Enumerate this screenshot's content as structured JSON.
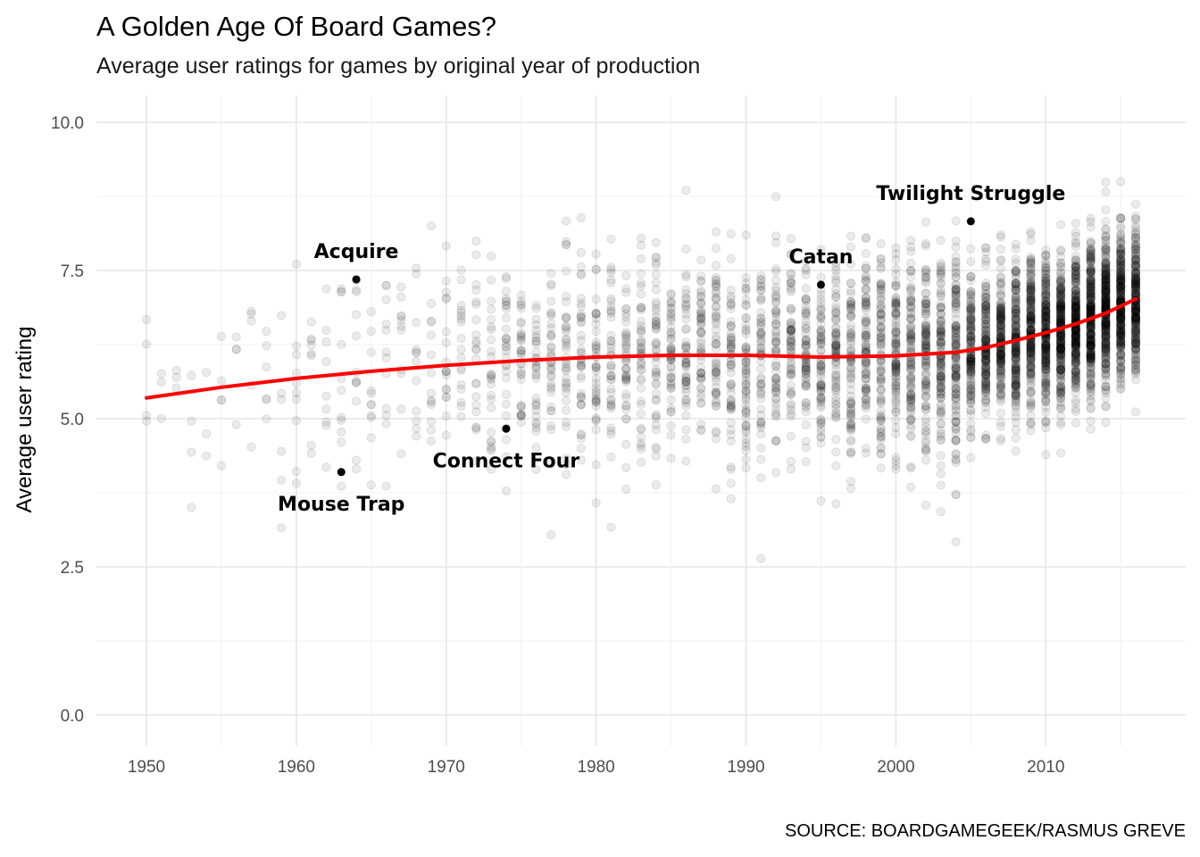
{
  "chart_data": {
    "type": "scatter",
    "title": "A Golden Age Of Board Games?",
    "subtitle": "Average user ratings for games by original year of production",
    "xlabel": "",
    "ylabel": "Average user rating",
    "source": "SOURCE: BOARDGAMEGEEK/RASMUS GREVE",
    "xlim": [
      1950,
      2016
    ],
    "ylim": [
      0,
      10
    ],
    "x_ticks": [
      "1950",
      "1960",
      "1970",
      "1980",
      "1990",
      "2000",
      "2010"
    ],
    "y_ticks": [
      "0.0",
      "2.5",
      "5.0",
      "7.5",
      "10.0"
    ],
    "grid": true,
    "point_color": "#000000",
    "point_opacity": 0.08,
    "trend_color": "#ff0000",
    "trend": {
      "x": [
        1950,
        1955,
        1960,
        1965,
        1970,
        1975,
        1980,
        1985,
        1990,
        1995,
        2000,
        2004,
        2006,
        2008,
        2010,
        2012,
        2014,
        2016
      ],
      "y": [
        5.35,
        5.53,
        5.68,
        5.8,
        5.9,
        5.98,
        6.04,
        6.07,
        6.07,
        6.04,
        6.06,
        6.12,
        6.2,
        6.32,
        6.45,
        6.6,
        6.78,
        7.02
      ]
    },
    "point_density": {
      "years": [
        1950,
        1951,
        1952,
        1953,
        1954,
        1955,
        1956,
        1957,
        1958,
        1959,
        1960,
        1961,
        1962,
        1963,
        1964,
        1965,
        1966,
        1967,
        1968,
        1969,
        1970,
        1971,
        1972,
        1973,
        1974,
        1975,
        1976,
        1977,
        1978,
        1979,
        1980,
        1981,
        1982,
        1983,
        1984,
        1985,
        1986,
        1987,
        1988,
        1989,
        1990,
        1991,
        1992,
        1993,
        1994,
        1995,
        1996,
        1997,
        1998,
        1999,
        2000,
        2001,
        2002,
        2003,
        2004,
        2005,
        2006,
        2007,
        2008,
        2009,
        2010,
        2011,
        2012,
        2013,
        2014,
        2015,
        2016
      ],
      "counts": [
        4,
        3,
        3,
        4,
        3,
        5,
        4,
        5,
        6,
        6,
        10,
        8,
        9,
        11,
        12,
        11,
        12,
        11,
        12,
        14,
        18,
        18,
        22,
        26,
        30,
        33,
        33,
        36,
        38,
        40,
        42,
        42,
        44,
        45,
        48,
        50,
        52,
        54,
        56,
        58,
        60,
        58,
        62,
        65,
        68,
        72,
        76,
        82,
        88,
        92,
        98,
        105,
        112,
        122,
        135,
        150,
        165,
        180,
        195,
        215,
        235,
        255,
        275,
        295,
        300,
        290,
        250
      ],
      "mean_rating": [
        5.35,
        5.39,
        5.42,
        5.46,
        5.5,
        5.53,
        5.56,
        5.59,
        5.62,
        5.65,
        5.68,
        5.7,
        5.73,
        5.75,
        5.78,
        5.8,
        5.82,
        5.84,
        5.86,
        5.88,
        5.9,
        5.92,
        5.93,
        5.95,
        5.96,
        5.98,
        5.99,
        6.0,
        6.02,
        6.03,
        6.04,
        6.05,
        6.05,
        6.06,
        6.06,
        6.07,
        6.07,
        6.07,
        6.07,
        6.07,
        6.07,
        6.06,
        6.06,
        6.05,
        6.05,
        6.04,
        6.04,
        6.05,
        6.05,
        6.06,
        6.06,
        6.07,
        6.09,
        6.1,
        6.12,
        6.16,
        6.2,
        6.26,
        6.32,
        6.38,
        6.45,
        6.52,
        6.6,
        6.69,
        6.78,
        6.9,
        7.02
      ]
    },
    "highlights": [
      {
        "name": "Acquire",
        "x": 1964,
        "y": 7.35,
        "label_pos": "above"
      },
      {
        "name": "Mouse Trap",
        "x": 1963,
        "y": 4.1,
        "label_pos": "below"
      },
      {
        "name": "Connect Four",
        "x": 1974,
        "y": 4.83,
        "label_pos": "below"
      },
      {
        "name": "Catan",
        "x": 1995,
        "y": 7.26,
        "label_pos": "above"
      },
      {
        "name": "Twilight Struggle",
        "x": 2005,
        "y": 8.33,
        "label_pos": "above"
      }
    ]
  }
}
